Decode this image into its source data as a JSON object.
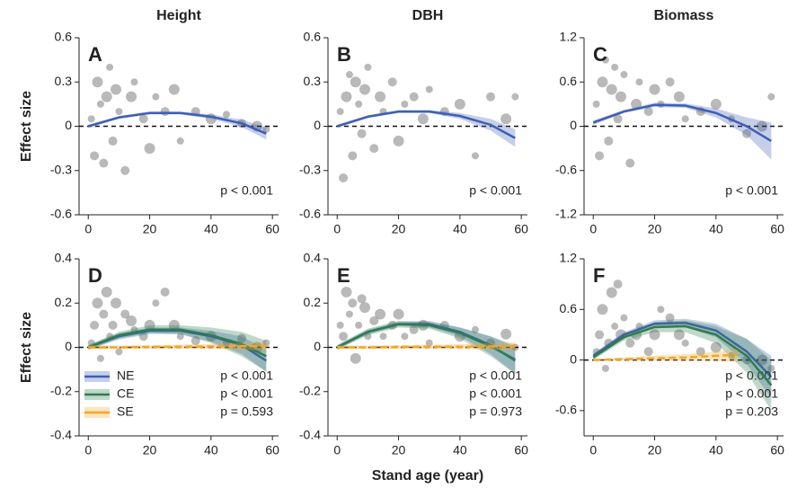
{
  "chart_data": [
    {
      "type": "scatter",
      "title": "Height",
      "label": "A",
      "ylabel": "Effect size",
      "annotation_color": "#111111",
      "points": {
        "color": "#8a8a8a",
        "x": [
          1,
          2,
          3,
          4,
          5,
          6,
          7,
          8,
          9,
          10,
          12,
          14,
          15,
          18,
          20,
          22,
          25,
          28,
          30,
          35,
          40,
          45,
          50,
          55,
          58
        ],
        "y": [
          0.05,
          -0.2,
          0.3,
          0.15,
          -0.25,
          0.2,
          0.4,
          -0.1,
          0.25,
          0.1,
          -0.3,
          0.2,
          0.3,
          0.05,
          -0.15,
          0.2,
          0.1,
          0.25,
          -0.1,
          0.1,
          0.05,
          0.08,
          0.02,
          0.0,
          -0.02
        ]
      },
      "series": [
        {
          "color": "#3f5fb5",
          "annotation": "p < 0.001",
          "x": [
            0,
            10,
            20,
            30,
            40,
            50,
            58
          ],
          "values": [
            0,
            0.06,
            0.09,
            0.09,
            0.065,
            0.02,
            -0.05
          ],
          "lower": [
            -0.01,
            0.05,
            0.08,
            0.08,
            0.05,
            -0.005,
            -0.09
          ],
          "upper": [
            0.01,
            0.07,
            0.1,
            0.1,
            0.08,
            0.045,
            -0.01
          ]
        }
      ],
      "xlim": [
        -3,
        62
      ],
      "xticks": [
        0,
        20,
        40,
        60
      ],
      "ylim": [
        -0.6,
        0.6
      ],
      "yticks": [
        -0.6,
        -0.3,
        0,
        0.3,
        0.6
      ],
      "hline": 0
    },
    {
      "type": "scatter",
      "title": "DBH",
      "label": "B",
      "annotation_color": "#111111",
      "points": {
        "color": "#8a8a8a",
        "x": [
          1,
          2,
          3,
          4,
          5,
          6,
          7,
          8,
          9,
          10,
          12,
          14,
          15,
          18,
          20,
          22,
          25,
          28,
          30,
          35,
          40,
          45,
          50,
          55,
          58
        ],
        "y": [
          0.1,
          -0.35,
          0.2,
          0.35,
          -0.2,
          0.3,
          0.15,
          -0.05,
          0.25,
          0.4,
          -0.15,
          0.2,
          0.1,
          0.3,
          -0.1,
          0.15,
          0.2,
          0.05,
          0.25,
          0.1,
          0.15,
          -0.2,
          0.2,
          0.05,
          0.2
        ]
      },
      "series": [
        {
          "color": "#3f5fb5",
          "annotation": "p < 0.001",
          "x": [
            0,
            10,
            20,
            30,
            40,
            50,
            58
          ],
          "values": [
            0,
            0.065,
            0.1,
            0.1,
            0.07,
            0.01,
            -0.08
          ],
          "lower": [
            -0.01,
            0.055,
            0.09,
            0.09,
            0.05,
            -0.03,
            -0.14
          ],
          "upper": [
            0.01,
            0.075,
            0.11,
            0.11,
            0.09,
            0.05,
            -0.02
          ]
        }
      ],
      "xlim": [
        -3,
        62
      ],
      "xticks": [
        0,
        20,
        40,
        60
      ],
      "ylim": [
        -0.6,
        0.6
      ],
      "yticks": [
        -0.6,
        -0.3,
        0,
        0.3,
        0.6
      ],
      "hline": 0
    },
    {
      "type": "scatter",
      "title": "Biomass",
      "label": "C",
      "annotation_color": "#111111",
      "points": {
        "color": "#8a8a8a",
        "x": [
          1,
          2,
          3,
          4,
          5,
          6,
          7,
          8,
          9,
          10,
          12,
          14,
          15,
          18,
          20,
          22,
          25,
          28,
          30,
          35,
          40,
          45,
          50,
          55,
          58
        ],
        "y": [
          0.3,
          -0.4,
          0.6,
          0.9,
          -0.2,
          0.5,
          0.8,
          0.1,
          0.4,
          0.7,
          -0.5,
          0.3,
          0.6,
          0.2,
          0.5,
          0.3,
          0.6,
          0.4,
          0.1,
          0.2,
          0.3,
          0.1,
          -0.1,
          0.0,
          0.4
        ]
      },
      "series": [
        {
          "color": "#3f5fb5",
          "annotation": "p < 0.001",
          "x": [
            0,
            10,
            20,
            30,
            40,
            50,
            58
          ],
          "values": [
            0.05,
            0.2,
            0.29,
            0.28,
            0.18,
            0,
            -0.2
          ],
          "lower": [
            0.02,
            0.18,
            0.26,
            0.25,
            0.12,
            -0.12,
            -0.45
          ],
          "upper": [
            0.08,
            0.22,
            0.32,
            0.31,
            0.24,
            0.12,
            0.05
          ]
        }
      ],
      "xlim": [
        -3,
        62
      ],
      "xticks": [
        0,
        20,
        40,
        60
      ],
      "ylim": [
        -1.2,
        1.2
      ],
      "yticks": [
        -1.2,
        -0.6,
        0,
        0.6,
        1.2
      ],
      "hline": 0
    },
    {
      "type": "scatter",
      "label": "D",
      "ylabel": "Effect size",
      "legend": "lower left",
      "points": {
        "color": "#8a8a8a",
        "x": [
          1,
          2,
          3,
          4,
          5,
          6,
          7,
          8,
          9,
          10,
          12,
          14,
          15,
          18,
          20,
          22,
          25,
          28,
          30,
          35,
          40,
          45,
          50,
          55,
          58
        ],
        "y": [
          0.02,
          0.1,
          0.2,
          -0.05,
          0.15,
          0.25,
          0.05,
          0.1,
          0.2,
          -0.02,
          0.15,
          0.12,
          0.08,
          0.05,
          0.1,
          0.2,
          0.25,
          0.1,
          0.05,
          0.03,
          0.05,
          0.02,
          0.04,
          0.0,
          0.02
        ]
      },
      "series": [
        {
          "name": "NE",
          "color": "#3f5fb5",
          "annotation": "p < 0.001",
          "x": [
            0,
            10,
            20,
            30,
            40,
            50,
            58
          ],
          "values": [
            0,
            0.05,
            0.075,
            0.075,
            0.05,
            0.01,
            -0.06
          ],
          "lower": [
            -0.01,
            0.035,
            0.06,
            0.06,
            0.025,
            -0.03,
            -0.11
          ],
          "upper": [
            0.01,
            0.065,
            0.09,
            0.09,
            0.075,
            0.05,
            -0.01
          ]
        },
        {
          "name": "CE",
          "color": "#2e7d4f",
          "annotation": "p < 0.001",
          "x": [
            0,
            10,
            20,
            30,
            40,
            50,
            58
          ],
          "values": [
            0,
            0.055,
            0.08,
            0.08,
            0.055,
            0.015,
            -0.04
          ],
          "lower": [
            -0.01,
            0.04,
            0.065,
            0.06,
            0.02,
            -0.04,
            -0.11
          ],
          "upper": [
            0.01,
            0.07,
            0.1,
            0.1,
            0.09,
            0.07,
            0.03
          ]
        },
        {
          "name": "SE",
          "color": "#f5a623",
          "annotation": "p = 0.593",
          "x": [
            0,
            10,
            20,
            30,
            40,
            50,
            58
          ],
          "values": [
            0,
            0,
            0.002,
            0.003,
            0.004,
            0.005,
            0.005
          ],
          "lower": [
            -0.01,
            -0.008,
            -0.006,
            -0.006,
            -0.007,
            -0.01,
            -0.015
          ],
          "upper": [
            0.01,
            0.008,
            0.01,
            0.012,
            0.015,
            0.02,
            0.025
          ]
        }
      ],
      "xlim": [
        -3,
        62
      ],
      "xticks": [
        0,
        20,
        40,
        60
      ],
      "ylim": [
        -0.4,
        0.4
      ],
      "yticks": [
        -0.4,
        -0.2,
        0,
        0.2,
        0.4
      ],
      "hline": 0
    },
    {
      "type": "scatter",
      "label": "E",
      "xlabel": "Stand age (year)",
      "points": {
        "color": "#8a8a8a",
        "x": [
          1,
          2,
          3,
          4,
          5,
          6,
          7,
          8,
          9,
          10,
          12,
          14,
          15,
          18,
          20,
          22,
          25,
          28,
          30,
          35,
          40,
          45,
          50,
          55,
          58
        ],
        "y": [
          0.1,
          0.05,
          0.25,
          0.15,
          0.2,
          -0.05,
          0.1,
          0.22,
          0.18,
          0.05,
          0.12,
          0.15,
          0.05,
          0.1,
          0.15,
          0.05,
          0.08,
          0.1,
          0.02,
          0.1,
          0.05,
          0.08,
          0.02,
          0.06,
          0.0
        ]
      },
      "series": [
        {
          "color": "#3f5fb5",
          "annotation": "p < 0.001",
          "x": [
            0,
            10,
            20,
            30,
            40,
            50,
            58
          ],
          "values": [
            0,
            0.07,
            0.105,
            0.105,
            0.07,
            0.01,
            -0.06
          ],
          "lower": [
            -0.01,
            0.06,
            0.095,
            0.09,
            0.05,
            -0.03,
            -0.12
          ],
          "upper": [
            0.01,
            0.08,
            0.115,
            0.12,
            0.09,
            0.05,
            0
          ]
        },
        {
          "color": "#2e7d4f",
          "annotation": "p < 0.001",
          "x": [
            0,
            10,
            20,
            30,
            40,
            50,
            58
          ],
          "values": [
            0,
            0.07,
            0.105,
            0.1,
            0.065,
            0.005,
            -0.055
          ],
          "lower": [
            -0.01,
            0.055,
            0.09,
            0.085,
            0.04,
            -0.04,
            -0.12
          ],
          "upper": [
            0.01,
            0.085,
            0.12,
            0.115,
            0.09,
            0.05,
            0.01
          ]
        },
        {
          "color": "#f5a623",
          "annotation": "p = 0.973",
          "x": [
            0,
            10,
            20,
            30,
            40,
            50,
            58
          ],
          "values": [
            0,
            0,
            0.002,
            0.003,
            0.003,
            0.004,
            0.004
          ],
          "lower": [
            -0.01,
            -0.008,
            -0.007,
            -0.007,
            -0.008,
            -0.01,
            -0.014
          ],
          "upper": [
            0.01,
            0.008,
            0.01,
            0.012,
            0.014,
            0.018,
            0.022
          ]
        }
      ],
      "xlim": [
        -3,
        62
      ],
      "xticks": [
        0,
        20,
        40,
        60
      ],
      "ylim": [
        -0.4,
        0.4
      ],
      "yticks": [
        -0.4,
        -0.2,
        0,
        0.2,
        0.4
      ],
      "hline": 0
    },
    {
      "type": "scatter",
      "label": "F",
      "points": {
        "color": "#8a8a8a",
        "x": [
          1,
          2,
          3,
          4,
          5,
          6,
          7,
          8,
          9,
          10,
          12,
          14,
          15,
          18,
          20,
          22,
          25,
          28,
          30,
          35,
          40,
          45,
          50,
          55,
          58
        ],
        "y": [
          0.1,
          0.3,
          0.6,
          -0.1,
          0.2,
          0.8,
          0.4,
          0.9,
          0.3,
          0.5,
          0.2,
          0.3,
          0.4,
          0.1,
          0.3,
          0.6,
          0.5,
          0.3,
          0.2,
          0.1,
          0.15,
          0.05,
          0.0,
          0.0,
          -0.1
        ]
      },
      "series": [
        {
          "color": "#3f5fb5",
          "annotation": "p < 0.001",
          "x": [
            0,
            10,
            20,
            30,
            40,
            50,
            58
          ],
          "values": [
            0.05,
            0.3,
            0.43,
            0.44,
            0.35,
            0.1,
            -0.2
          ],
          "lower": [
            0.02,
            0.27,
            0.39,
            0.39,
            0.27,
            -0.05,
            -0.45
          ],
          "upper": [
            0.08,
            0.33,
            0.47,
            0.49,
            0.43,
            0.25,
            0.05
          ]
        },
        {
          "color": "#2e7d4f",
          "annotation": "p < 0.001",
          "x": [
            0,
            10,
            20,
            30,
            40,
            50,
            58
          ],
          "values": [
            0.03,
            0.27,
            0.39,
            0.4,
            0.3,
            0.05,
            -0.3
          ],
          "lower": [
            0,
            0.23,
            0.33,
            0.33,
            0.2,
            -0.15,
            -0.6
          ],
          "upper": [
            0.06,
            0.31,
            0.45,
            0.47,
            0.4,
            0.25,
            0
          ]
        },
        {
          "color": "#f5a623",
          "annotation": "p = 0.203",
          "x": [
            0,
            10,
            20,
            30,
            40,
            47
          ],
          "values": [
            0,
            0.01,
            0.02,
            0.03,
            0.05,
            0.06
          ],
          "lower": [
            -0.01,
            -0.01,
            -0.01,
            -0.01,
            -0.01,
            -0.02
          ],
          "upper": [
            0.01,
            0.03,
            0.05,
            0.07,
            0.1,
            0.13
          ]
        }
      ],
      "xlim": [
        -3,
        62
      ],
      "xticks": [
        0,
        20,
        40,
        60
      ],
      "ylim": [
        -0.9,
        1.2
      ],
      "yticks": [
        -0.6,
        0,
        0.6,
        1.2
      ],
      "hline": 0
    }
  ]
}
